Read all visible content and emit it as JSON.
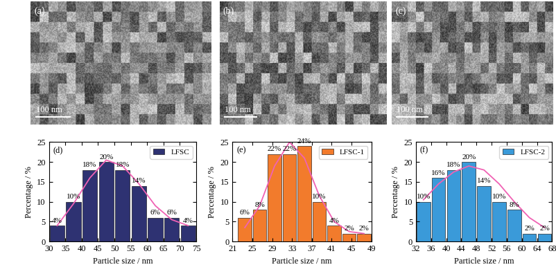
{
  "images": [
    {
      "label": "(a)",
      "scale_bar": "100 nm"
    },
    {
      "label": "(b)",
      "scale_bar": "100 nm"
    },
    {
      "label": "(c)",
      "scale_bar": "100 nm"
    }
  ],
  "chart_data": [
    {
      "type": "histogram",
      "panel": "(d)",
      "xlabel": "Particle size / nm",
      "ylabel": "Percentage / %",
      "legend": "upper right",
      "data_labels": true,
      "bins": [
        30,
        35,
        40,
        45,
        50,
        55,
        60,
        65,
        70,
        75
      ],
      "series": [
        {
          "name": "LFSC",
          "color": "#2e3272",
          "values": [
            4,
            10,
            18,
            20,
            18,
            14,
            6,
            6,
            4
          ],
          "value_labels": [
            "4%",
            "10%",
            "18%",
            "20%",
            "18%",
            "14%",
            "6%",
            "6%",
            "4%"
          ]
        }
      ],
      "fit": {
        "type": "line",
        "color": "#f062b4",
        "x": [
          32.5,
          37.5,
          42.5,
          47.5,
          52.5,
          57.5,
          62.5,
          67.5,
          72.5
        ],
        "values": [
          4,
          9.5,
          16,
          20.5,
          19,
          14.5,
          9,
          5.5,
          4
        ]
      },
      "xlim": [
        30,
        75
      ],
      "xticks": [
        30,
        35,
        40,
        45,
        50,
        55,
        60,
        65,
        70,
        75
      ],
      "ylim": [
        0,
        25
      ],
      "yticks": [
        0,
        5,
        10,
        15,
        20,
        25
      ]
    },
    {
      "type": "histogram",
      "panel": "(e)",
      "xlabel": "Particle size / nm",
      "ylabel": "Percentage / %",
      "legend": "upper right",
      "data_labels": true,
      "bins": [
        22,
        25,
        28,
        31,
        34,
        37,
        40,
        43,
        46,
        49
      ],
      "series": [
        {
          "name": "LFSC-1",
          "color": "#f27b2c",
          "values": [
            6,
            8,
            22,
            22,
            24,
            10,
            4,
            2,
            2
          ],
          "value_labels": [
            "6%",
            "8%",
            "22%",
            "22%",
            "24%",
            "10%",
            "4%",
            "2%",
            "2%"
          ]
        }
      ],
      "fit": {
        "type": "line",
        "color": "#f062b4",
        "x": [
          23.5,
          26.5,
          29.5,
          32.5,
          35.5,
          38.5,
          41.5,
          44.5,
          47.5
        ],
        "values": [
          3.5,
          9,
          19,
          25,
          21,
          11.5,
          5,
          2.5,
          2
        ]
      },
      "xlim": [
        21,
        49
      ],
      "xticks": [
        21,
        25,
        29,
        33,
        37,
        41,
        45,
        49
      ],
      "ylim": [
        0,
        25
      ],
      "yticks": [
        0,
        5,
        10,
        15,
        20,
        25
      ]
    },
    {
      "type": "histogram",
      "panel": "(f)",
      "xlabel": "Particle size / nm",
      "ylabel": "Percentage / %",
      "legend": "upper right",
      "data_labels": true,
      "bins": [
        32,
        36,
        40,
        44,
        48,
        52,
        56,
        60,
        64,
        68
      ],
      "series": [
        {
          "name": "LFSC-2",
          "color": "#3a9ad9",
          "values": [
            10,
            16,
            18,
            20,
            14,
            10,
            8,
            2,
            2
          ],
          "value_labels": [
            "10%",
            "16%",
            "18%",
            "20%",
            "14%",
            "10%",
            "8%",
            "2%",
            "2%"
          ]
        }
      ],
      "fit": {
        "type": "line",
        "color": "#f062b4",
        "x": [
          34,
          38,
          42,
          46,
          50,
          54,
          58,
          62,
          66
        ],
        "values": [
          10.5,
          14.5,
          17.5,
          19,
          18,
          14.5,
          10,
          6,
          3.5
        ]
      },
      "xlim": [
        32,
        68
      ],
      "xticks": [
        32,
        36,
        40,
        44,
        48,
        52,
        56,
        60,
        64,
        68
      ],
      "ylim": [
        0,
        25
      ],
      "yticks": [
        0,
        5,
        10,
        15,
        20,
        25
      ]
    }
  ]
}
